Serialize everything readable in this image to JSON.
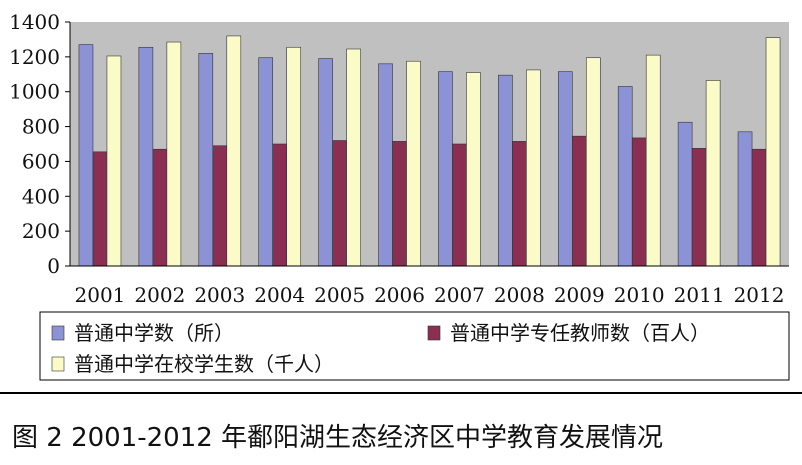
{
  "chart_data": {
    "type": "bar",
    "categories": [
      "2001",
      "2002",
      "2003",
      "2004",
      "2005",
      "2006",
      "2007",
      "2008",
      "2009",
      "2010",
      "2011",
      "2012"
    ],
    "series": [
      {
        "name": "普通中学数（所）",
        "color": "#8b93d6",
        "values": [
          1270,
          1255,
          1220,
          1195,
          1190,
          1160,
          1115,
          1095,
          1115,
          1030,
          825,
          770
        ]
      },
      {
        "name": "普通中学专任教师数（百人）",
        "color": "#8a2f52",
        "values": [
          655,
          670,
          690,
          700,
          720,
          715,
          700,
          715,
          745,
          735,
          675,
          670
        ]
      },
      {
        "name": "普通中学在校学生数（千人）",
        "color": "#fbfbc8",
        "values": [
          1205,
          1285,
          1320,
          1255,
          1245,
          1175,
          1110,
          1125,
          1195,
          1210,
          1065,
          1310
        ]
      }
    ],
    "ylim": [
      0,
      1400
    ],
    "yticks": [
      0,
      200,
      400,
      600,
      800,
      1000,
      1200,
      1400
    ],
    "legend": "bottom",
    "grid": false
  },
  "colors": {
    "plot_background": "#c0c0c0",
    "outer_background": "#ffffff"
  },
  "caption": "图 2  2001-2012 年鄱阳湖生态经济区中学教育发展情况"
}
